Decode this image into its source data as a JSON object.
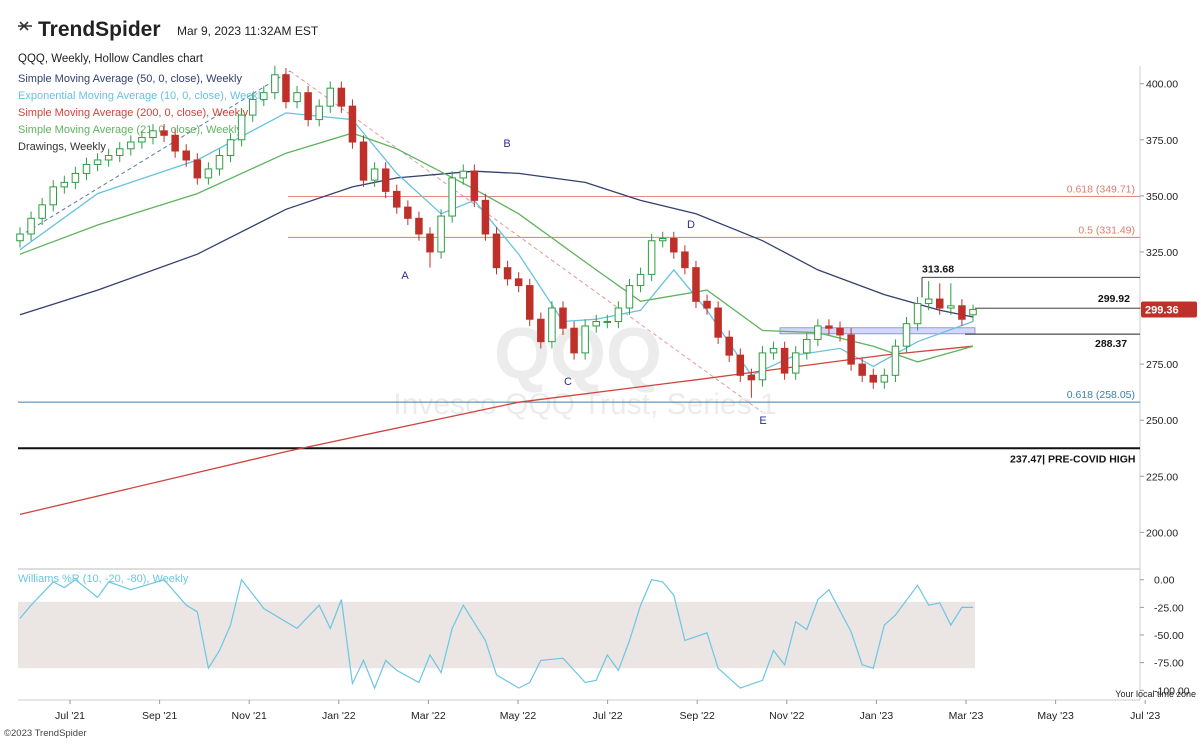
{
  "chart_data": {
    "type": "candlestick",
    "brand": "TrendSpider",
    "timestamp": "Mar 9, 2023 11:32AM EST",
    "title": "QQQ, Weekly, Hollow Candles chart",
    "watermark": [
      "QQQ",
      "Invesco QQQ Trust, Series 1"
    ],
    "footer": "©2023 TrendSpider",
    "timezone": "Your local time zone",
    "categories": [
      "Jul '21",
      "Sep '21",
      "Nov '21",
      "Jan '22",
      "Mar '22",
      "May '22",
      "Jul '22",
      "Sep '22",
      "Nov '22",
      "Jan '23",
      "Mar '23",
      "May '23",
      "Jul '23"
    ],
    "up_color": "#2e9e44",
    "down_color": "#c0302a",
    "candles": {
      "open": [
        330,
        333,
        340,
        346,
        354,
        356,
        360,
        364,
        366,
        368,
        371,
        374,
        376,
        379,
        377,
        370,
        366,
        358,
        362,
        368,
        375,
        386,
        393,
        396,
        404,
        392,
        396,
        384,
        390,
        398,
        390,
        374,
        357,
        362,
        352,
        345,
        340,
        333,
        325,
        341,
        358,
        361,
        348,
        333,
        318,
        313,
        310,
        295,
        285,
        300,
        291,
        280,
        292,
        294,
        294,
        300,
        310,
        315,
        330,
        331,
        325,
        318,
        303,
        300,
        287,
        279,
        270,
        268,
        280,
        282,
        271,
        280,
        286,
        292,
        291,
        288,
        275,
        270,
        267,
        270,
        283,
        293,
        302,
        304,
        300,
        301,
        297
      ],
      "high": [
        336,
        343,
        349,
        357,
        359,
        363,
        367,
        369,
        371,
        374,
        377,
        379,
        382,
        382,
        380,
        373,
        369,
        365,
        371,
        378,
        389,
        396,
        399,
        408,
        407,
        399,
        399,
        393,
        401,
        401,
        393,
        377,
        365,
        365,
        355,
        348,
        343,
        336,
        344,
        361,
        364,
        364,
        351,
        336,
        321,
        316,
        313,
        298,
        303,
        303,
        294,
        295,
        297,
        297,
        303,
        313,
        318,
        333,
        334,
        334,
        328,
        321,
        306,
        303,
        290,
        282,
        273,
        283,
        285,
        285,
        283,
        289,
        295,
        295,
        294,
        291,
        278,
        273,
        273,
        286,
        296,
        305,
        312,
        311,
        311,
        304,
        301.5
      ],
      "low": [
        327,
        330,
        337,
        343,
        351,
        353,
        357,
        361,
        363,
        365,
        368,
        371,
        373,
        374,
        367,
        363,
        355,
        355,
        359,
        365,
        372,
        383,
        390,
        393,
        389,
        389,
        381,
        381,
        387,
        387,
        371,
        354,
        354,
        349,
        342,
        337,
        330,
        318,
        322,
        338,
        355,
        345,
        330,
        315,
        310,
        307,
        292,
        282,
        282,
        288,
        277,
        277,
        289,
        291,
        291,
        297,
        307,
        312,
        327,
        322,
        315,
        300,
        297,
        284,
        276,
        267,
        260,
        265,
        277,
        268,
        268,
        277,
        283,
        288,
        285,
        272,
        267,
        264,
        264,
        267,
        280,
        290,
        299,
        297,
        297,
        292,
        294
      ],
      "close": [
        333,
        340,
        346,
        354,
        356,
        360,
        364,
        366,
        368,
        371,
        374,
        376,
        379,
        377,
        370,
        366,
        358,
        362,
        368,
        375,
        386,
        393,
        396,
        404,
        392,
        396,
        384,
        390,
        398,
        390,
        374,
        357,
        362,
        352,
        345,
        340,
        333,
        325,
        341,
        358,
        361,
        348,
        333,
        318,
        313,
        310,
        295,
        285,
        300,
        291,
        280,
        292,
        294,
        294,
        300,
        310,
        315,
        330,
        331,
        325,
        318,
        303,
        300,
        287,
        279,
        270,
        268,
        280,
        282,
        271,
        280,
        286,
        292,
        291,
        288,
        275,
        270,
        267,
        270,
        283,
        293,
        302,
        304,
        300,
        301,
        295,
        299.36
      ]
    },
    "ylim": [
      185,
      407
    ],
    "yticks": [
      {
        "value": 200,
        "label": "200.00"
      },
      {
        "value": 225,
        "label": "225.00"
      },
      {
        "value": 250,
        "label": "250.00"
      },
      {
        "value": 275,
        "label": "275.00"
      },
      {
        "value": 300,
        "label": "300.00"
      },
      {
        "value": 325,
        "label": "325.00"
      },
      {
        "value": 350,
        "label": "350.00"
      },
      {
        "value": 375,
        "label": "375.00"
      },
      {
        "value": 400,
        "label": "400.00"
      }
    ],
    "overlays": [
      {
        "name": "Simple Moving Average (50, 0, close), Weekly",
        "color": "#34406e",
        "x": [
          0,
          7,
          16,
          24,
          30,
          34,
          41,
          45,
          51,
          56,
          61,
          67,
          72,
          78,
          83,
          86
        ],
        "values": [
          297,
          308,
          324,
          344,
          354,
          358,
          361,
          360,
          356,
          348,
          342,
          330,
          317,
          306,
          299,
          296
        ]
      },
      {
        "name": "Exponential Moving Average (10, 0, close), Weekly",
        "color": "#67c2e0",
        "x": [
          0,
          7,
          16,
          24,
          30,
          34,
          38,
          41,
          45,
          49,
          52,
          56,
          59,
          62,
          66,
          70,
          74,
          77,
          81,
          86
        ],
        "values": [
          326,
          351,
          366,
          387,
          384,
          360,
          342,
          348,
          324,
          294,
          295,
          299,
          317,
          299,
          270,
          279,
          282,
          274,
          285,
          294
        ]
      },
      {
        "name": "Simple Moving Average (200, 0, close), Weekly",
        "color": "#d0443c",
        "x": [
          0,
          24,
          45,
          61,
          78,
          86
        ],
        "values": [
          208,
          236,
          258,
          268,
          279,
          283
        ]
      },
      {
        "name": "Simple Moving Average (21, 0, close), Weekly",
        "color": "#5fb35f",
        "x": [
          0,
          7,
          16,
          24,
          30,
          34,
          41,
          45,
          52,
          56,
          62,
          67,
          72,
          77,
          81,
          86
        ],
        "values": [
          324,
          337,
          351,
          369,
          378,
          371,
          353,
          342,
          317,
          303,
          308,
          290,
          289,
          283,
          276,
          283
        ]
      },
      {
        "name": "Drawings, Weekly",
        "color": "#333333"
      }
    ],
    "levels": [
      {
        "label": "0.618 (349.71)",
        "value": 349.71,
        "color": "#e07a74"
      },
      {
        "label": "0.5 (331.49)",
        "value": 331.49,
        "color": "#e07a74"
      },
      {
        "label": "0.618 (258.05)",
        "value": 258.05,
        "color": "#3d7fa6"
      },
      {
        "label": "237.47| PRE-COVID HIGH",
        "value": 237.47,
        "color": "#111111"
      },
      {
        "label": "313.68",
        "value": 313.68,
        "color": "#222222"
      },
      {
        "label": "299.92",
        "value": 299.92,
        "color": "#222222"
      },
      {
        "label": "288.37",
        "value": 288.37,
        "color": "#222222"
      }
    ],
    "zone": {
      "from": 288.5,
      "to": 291.2,
      "color": "#c9cdf5"
    },
    "annotations": [
      "A",
      "B",
      "C",
      "D",
      "E"
    ],
    "indicator": {
      "name": "Williams %R (10, -20, -80), Weekly",
      "color": "#6cc6e3",
      "ylim": [
        -107,
        7
      ],
      "yticks": [
        {
          "value": 0,
          "label": "0.00"
        },
        {
          "value": -25,
          "label": "-25.00"
        },
        {
          "value": -50,
          "label": "-50.00"
        },
        {
          "value": -75,
          "label": "-75.00"
        },
        {
          "value": -100,
          "label": "-100.00"
        }
      ],
      "band": [
        -80,
        -20
      ],
      "x": [
        0,
        1,
        3,
        4,
        5,
        7,
        8,
        10,
        12,
        13,
        15,
        16,
        17,
        18,
        19,
        20,
        22,
        25,
        27,
        28,
        29,
        30,
        31,
        32,
        33,
        34,
        36,
        37,
        38,
        39,
        40,
        42,
        43,
        45,
        46,
        47,
        49,
        50,
        51,
        52,
        53,
        54,
        55,
        56,
        57,
        58,
        59,
        60,
        62,
        63,
        65,
        67,
        68,
        69,
        70,
        71,
        72,
        73,
        75,
        76,
        77,
        78,
        79,
        81,
        82,
        83,
        84,
        85,
        86
      ],
      "values": [
        -35,
        -23,
        -2,
        -7,
        0,
        -16,
        -2,
        -9,
        -3,
        0,
        -23,
        -29,
        -80,
        -64,
        -41,
        0,
        -26,
        -44,
        -23,
        -44,
        -18,
        -94,
        -73,
        -98,
        -73,
        -82,
        -93,
        -68,
        -84,
        -44,
        -23,
        -55,
        -86,
        -98,
        -93,
        -73,
        -71,
        -82,
        -93,
        -91,
        -68,
        -82,
        -55,
        -23,
        0,
        -2,
        -14,
        -55,
        -48,
        -80,
        -98,
        -91,
        -64,
        -77,
        -38,
        -45,
        -18,
        -9,
        -47,
        -77,
        -80,
        -41,
        -32,
        -5,
        -23,
        -21,
        -41,
        -25,
        -25
      ]
    }
  }
}
